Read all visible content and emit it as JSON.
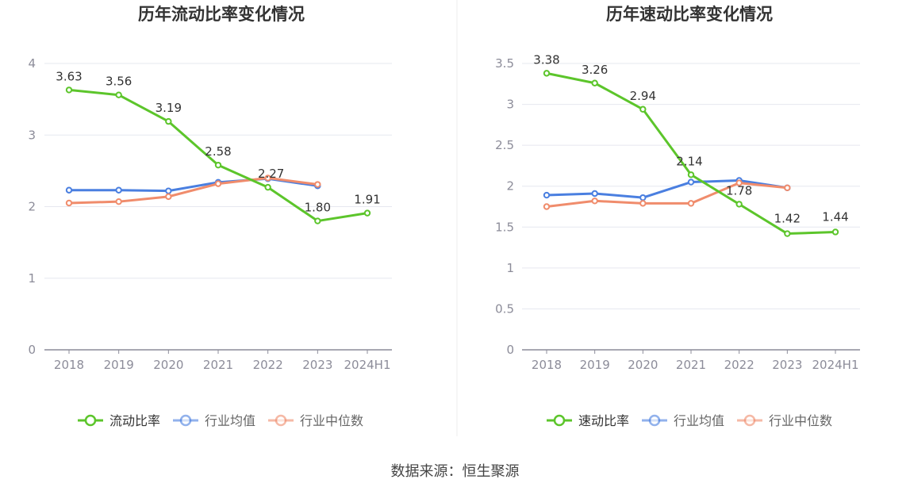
{
  "source_text": "数据来源：恒生聚源",
  "colors": {
    "main": "#5cc52b",
    "avg": "#4a7fe0",
    "median": "#f08c6c",
    "grid": "#e6e8ef",
    "axis": "#8c8c99",
    "text": "#333333"
  },
  "chart_data": [
    {
      "type": "line",
      "title": "历年流动比率变化情况",
      "categories": [
        "2018",
        "2019",
        "2020",
        "2021",
        "2022",
        "2023",
        "2024H1"
      ],
      "ylim": [
        0,
        4
      ],
      "yticks": [
        "0",
        "1",
        "2",
        "3",
        "4"
      ],
      "grid": true,
      "legend": "bottom",
      "series": [
        {
          "name": "流动比率",
          "color_key": "main",
          "values": [
            3.63,
            3.56,
            3.19,
            2.58,
            2.27,
            1.8,
            1.91
          ],
          "labels": [
            "3.63",
            "3.56",
            "3.19",
            "2.58",
            "2.27",
            "1.80",
            "1.91"
          ]
        },
        {
          "name": "行业均值",
          "color_key": "avg",
          "values": [
            2.23,
            2.23,
            2.22,
            2.34,
            2.39,
            2.29,
            null
          ]
        },
        {
          "name": "行业中位数",
          "color_key": "median",
          "values": [
            2.05,
            2.07,
            2.14,
            2.32,
            2.4,
            2.31,
            null
          ]
        }
      ]
    },
    {
      "type": "line",
      "title": "历年速动比率变化情况",
      "categories": [
        "2018",
        "2019",
        "2020",
        "2021",
        "2022",
        "2023",
        "2024H1"
      ],
      "ylim": [
        0,
        3.5
      ],
      "yticks": [
        "0",
        "0.5",
        "1",
        "1.5",
        "2",
        "2.5",
        "3",
        "3.5"
      ],
      "grid": true,
      "legend": "bottom",
      "series": [
        {
          "name": "速动比率",
          "color_key": "main",
          "values": [
            3.38,
            3.26,
            2.94,
            2.14,
            1.78,
            1.42,
            1.44
          ],
          "labels": [
            "3.38",
            "3.26",
            "2.94",
            "2.14",
            "1.78",
            "1.42",
            "1.44"
          ]
        },
        {
          "name": "行业均值",
          "color_key": "avg",
          "values": [
            1.89,
            1.91,
            1.86,
            2.05,
            2.07,
            1.98,
            null
          ]
        },
        {
          "name": "行业中位数",
          "color_key": "median",
          "values": [
            1.75,
            1.82,
            1.79,
            1.79,
            2.04,
            1.98,
            null
          ]
        }
      ]
    }
  ]
}
